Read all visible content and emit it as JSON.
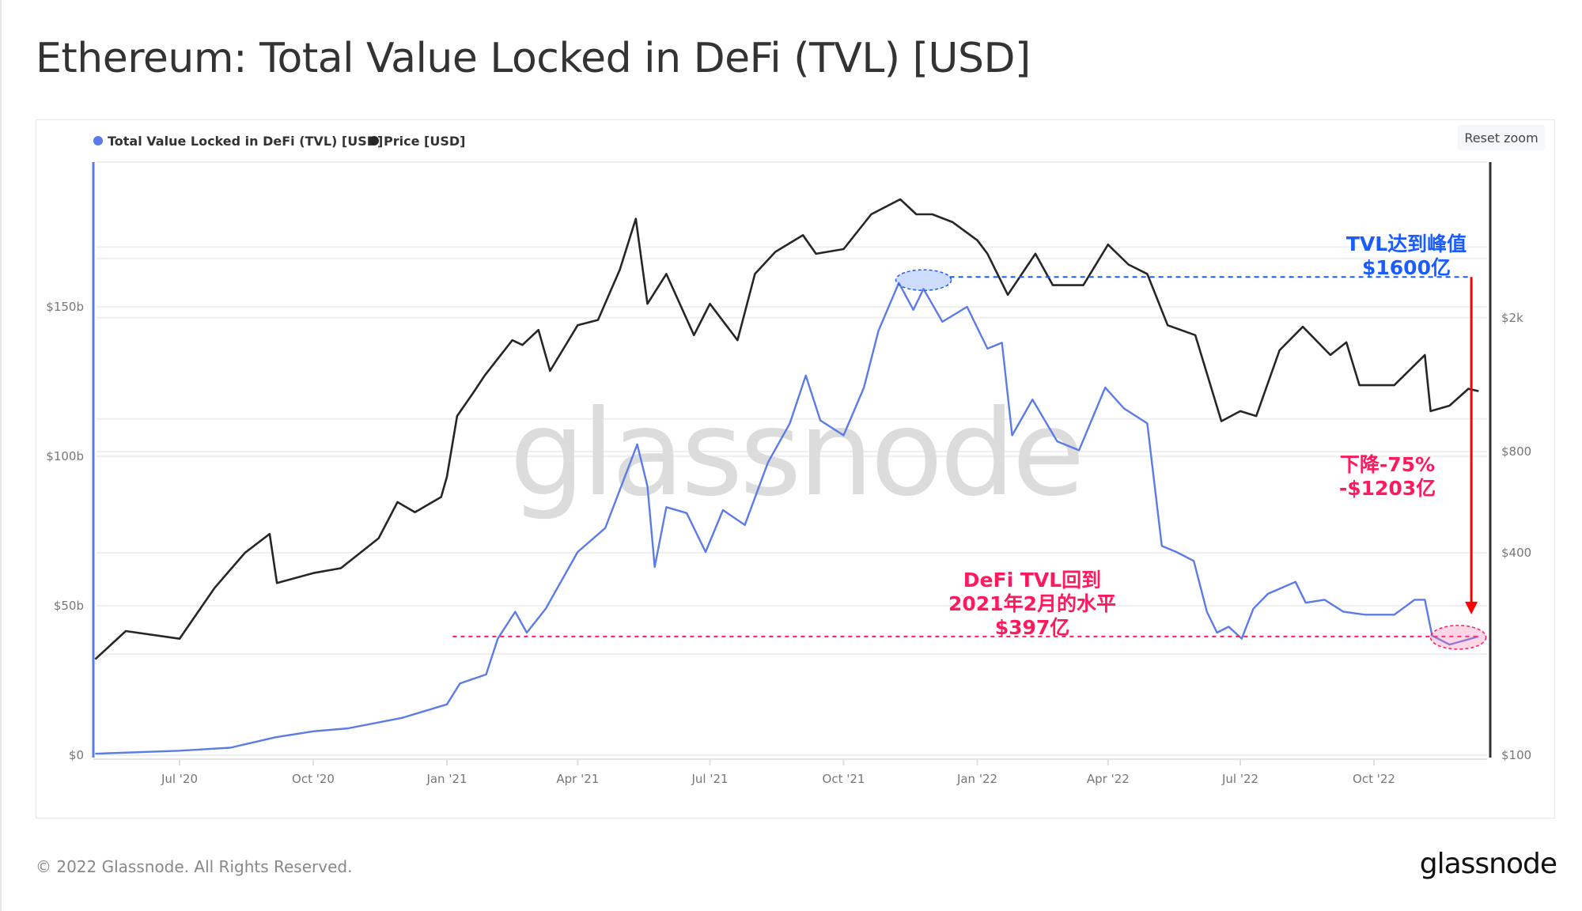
{
  "title": "Ethereum: Total Value Locked in DeFi (TVL) [USD]",
  "reset_zoom_label": "Reset zoom",
  "watermark": "glassnode",
  "footer": {
    "copyright": "© 2022 Glassnode. All Rights Reserved.",
    "logo": "glassnode"
  },
  "chart_data": {
    "type": "line",
    "title": "Ethereum: Total Value Locked in DeFi (TVL) [USD]",
    "legend_placement": "top-left",
    "grid": true,
    "x_ticks": [
      "Jul '20",
      "Oct '20",
      "Jan '21",
      "Apr '21",
      "Jul '21",
      "Oct '21",
      "Jan '22",
      "Apr '22",
      "Jul '22",
      "Oct '22"
    ],
    "x_tick_dates": [
      "2020-07-01",
      "2020-10-01",
      "2021-01-01",
      "2021-04-01",
      "2021-07-01",
      "2021-10-01",
      "2022-01-01",
      "2022-04-01",
      "2022-07-01",
      "2022-10-01"
    ],
    "x_range": [
      "2020-05-04",
      "2022-12-12"
    ],
    "y_left": {
      "scale": "linear",
      "ticks": [
        0,
        50,
        100,
        150
      ],
      "tick_labels": [
        "$0",
        "$50b",
        "$100b",
        "$150b"
      ],
      "unit": "billion USD",
      "range": [
        0,
        200
      ]
    },
    "y_right": {
      "scale": "log",
      "ticks": [
        100,
        400,
        800,
        2000
      ],
      "tick_labels": [
        "$100",
        "$400",
        "$800",
        "$2k"
      ],
      "range": [
        100,
        5600
      ]
    },
    "series": [
      {
        "name": "Total Value Locked in DeFi (TVL) [USD]",
        "axis": "left",
        "color": "#5b7be8",
        "points": [
          [
            "2020-05-04",
            0.5
          ],
          [
            "2020-07-01",
            1.5
          ],
          [
            "2020-08-05",
            2.5
          ],
          [
            "2020-09-05",
            6
          ],
          [
            "2020-10-01",
            8
          ],
          [
            "2020-10-25",
            9
          ],
          [
            "2020-12-01",
            12.5
          ],
          [
            "2021-01-01",
            17
          ],
          [
            "2021-01-10",
            24
          ],
          [
            "2021-01-28",
            27
          ],
          [
            "2021-02-05",
            39
          ],
          [
            "2021-02-17",
            48
          ],
          [
            "2021-02-25",
            41
          ],
          [
            "2021-03-10",
            49
          ],
          [
            "2021-04-01",
            68
          ],
          [
            "2021-04-20",
            76
          ],
          [
            "2021-05-12",
            104
          ],
          [
            "2021-05-19",
            90
          ],
          [
            "2021-05-24",
            63
          ],
          [
            "2021-06-01",
            83
          ],
          [
            "2021-06-15",
            81
          ],
          [
            "2021-06-28",
            68
          ],
          [
            "2021-07-10",
            82
          ],
          [
            "2021-07-25",
            77
          ],
          [
            "2021-08-10",
            98
          ],
          [
            "2021-08-25",
            111
          ],
          [
            "2021-09-05",
            127
          ],
          [
            "2021-09-15",
            112
          ],
          [
            "2021-10-01",
            107
          ],
          [
            "2021-10-15",
            123
          ],
          [
            "2021-10-25",
            142
          ],
          [
            "2021-11-08",
            158
          ],
          [
            "2021-11-18",
            149
          ],
          [
            "2021-11-25",
            156
          ],
          [
            "2021-12-08",
            145
          ],
          [
            "2021-12-25",
            150
          ],
          [
            "2022-01-08",
            136
          ],
          [
            "2022-01-18",
            138
          ],
          [
            "2022-01-25",
            107
          ],
          [
            "2022-02-08",
            119
          ],
          [
            "2022-02-25",
            105
          ],
          [
            "2022-03-12",
            102
          ],
          [
            "2022-03-30",
            123
          ],
          [
            "2022-04-12",
            116
          ],
          [
            "2022-04-28",
            111
          ],
          [
            "2022-05-08",
            70
          ],
          [
            "2022-05-18",
            68
          ],
          [
            "2022-05-30",
            65
          ],
          [
            "2022-06-08",
            48
          ],
          [
            "2022-06-15",
            41
          ],
          [
            "2022-06-23",
            43
          ],
          [
            "2022-07-02",
            39
          ],
          [
            "2022-07-10",
            49
          ],
          [
            "2022-07-20",
            54
          ],
          [
            "2022-08-08",
            58
          ],
          [
            "2022-08-15",
            51
          ],
          [
            "2022-08-28",
            52
          ],
          [
            "2022-09-10",
            48
          ],
          [
            "2022-09-25",
            47
          ],
          [
            "2022-10-15",
            47
          ],
          [
            "2022-10-29",
            52
          ],
          [
            "2022-11-05",
            52
          ],
          [
            "2022-11-10",
            40
          ],
          [
            "2022-11-22",
            37
          ],
          [
            "2022-12-12",
            39.7
          ]
        ]
      },
      {
        "name": "Price [USD]",
        "axis": "right",
        "color": "#262626",
        "points": [
          [
            "2020-05-04",
            193
          ],
          [
            "2020-05-25",
            234
          ],
          [
            "2020-07-01",
            222
          ],
          [
            "2020-07-25",
            314
          ],
          [
            "2020-08-15",
            400
          ],
          [
            "2020-09-01",
            455
          ],
          [
            "2020-09-06",
            325
          ],
          [
            "2020-10-01",
            348
          ],
          [
            "2020-10-20",
            360
          ],
          [
            "2020-11-15",
            442
          ],
          [
            "2020-11-28",
            566
          ],
          [
            "2020-12-10",
            528
          ],
          [
            "2020-12-28",
            586
          ],
          [
            "2021-01-01",
            673
          ],
          [
            "2021-01-08",
            1020
          ],
          [
            "2021-01-20",
            1212
          ],
          [
            "2021-01-27",
            1347
          ],
          [
            "2021-02-15",
            1715
          ],
          [
            "2021-02-22",
            1660
          ],
          [
            "2021-03-05",
            1840
          ],
          [
            "2021-03-13",
            1390
          ],
          [
            "2021-04-01",
            1900
          ],
          [
            "2021-04-15",
            1970
          ],
          [
            "2021-04-30",
            2780
          ],
          [
            "2021-05-11",
            3940
          ],
          [
            "2021-05-19",
            2200
          ],
          [
            "2021-06-01",
            2700
          ],
          [
            "2021-06-20",
            1775
          ],
          [
            "2021-07-01",
            2200
          ],
          [
            "2021-07-20",
            1715
          ],
          [
            "2021-08-01",
            2700
          ],
          [
            "2021-08-15",
            3140
          ],
          [
            "2021-09-03",
            3520
          ],
          [
            "2021-09-12",
            3100
          ],
          [
            "2021-10-01",
            3200
          ],
          [
            "2021-10-20",
            4060
          ],
          [
            "2021-11-09",
            4500
          ],
          [
            "2021-11-20",
            4060
          ],
          [
            "2021-12-01",
            4060
          ],
          [
            "2021-12-15",
            3850
          ],
          [
            "2022-01-01",
            3400
          ],
          [
            "2022-01-08",
            3100
          ],
          [
            "2022-01-22",
            2340
          ],
          [
            "2022-02-10",
            3100
          ],
          [
            "2022-02-22",
            2500
          ],
          [
            "2022-03-15",
            2500
          ],
          [
            "2022-04-01",
            3300
          ],
          [
            "2022-04-15",
            2880
          ],
          [
            "2022-04-28",
            2700
          ],
          [
            "2022-05-12",
            1900
          ],
          [
            "2022-05-31",
            1775
          ],
          [
            "2022-06-18",
            985
          ],
          [
            "2022-07-01",
            1055
          ],
          [
            "2022-07-12",
            1020
          ],
          [
            "2022-07-28",
            1600
          ],
          [
            "2022-08-13",
            1880
          ],
          [
            "2022-09-01",
            1550
          ],
          [
            "2022-09-12",
            1690
          ],
          [
            "2022-09-21",
            1260
          ],
          [
            "2022-10-15",
            1260
          ],
          [
            "2022-11-05",
            1550
          ],
          [
            "2022-11-09",
            1055
          ],
          [
            "2022-11-22",
            1095
          ],
          [
            "2022-12-05",
            1230
          ],
          [
            "2022-12-12",
            1210
          ]
        ]
      }
    ],
    "annotations": {
      "peak": {
        "value": 160,
        "date": "2021-11-25",
        "line_from": "2021-12-13",
        "line_to": "2022-12-07",
        "color": "#1a5cff",
        "lines": [
          "TVL达到峰值",
          "$1600亿"
        ]
      },
      "drop": {
        "from": 160,
        "to": 39.7,
        "date": "2022-12-07",
        "color": "#ff0000",
        "text_color": "#ff1a5e",
        "lines": [
          "下降-75%",
          "-$1203亿"
        ]
      },
      "current": {
        "value": 39.7,
        "date": "2022-11-28",
        "line_from": "2021-01-05",
        "line_to": "2022-12-12",
        "color": "#ff1a5e",
        "lines": [
          "DeFi TVL回到",
          "2021年2月的水平",
          "$397亿"
        ]
      }
    }
  }
}
